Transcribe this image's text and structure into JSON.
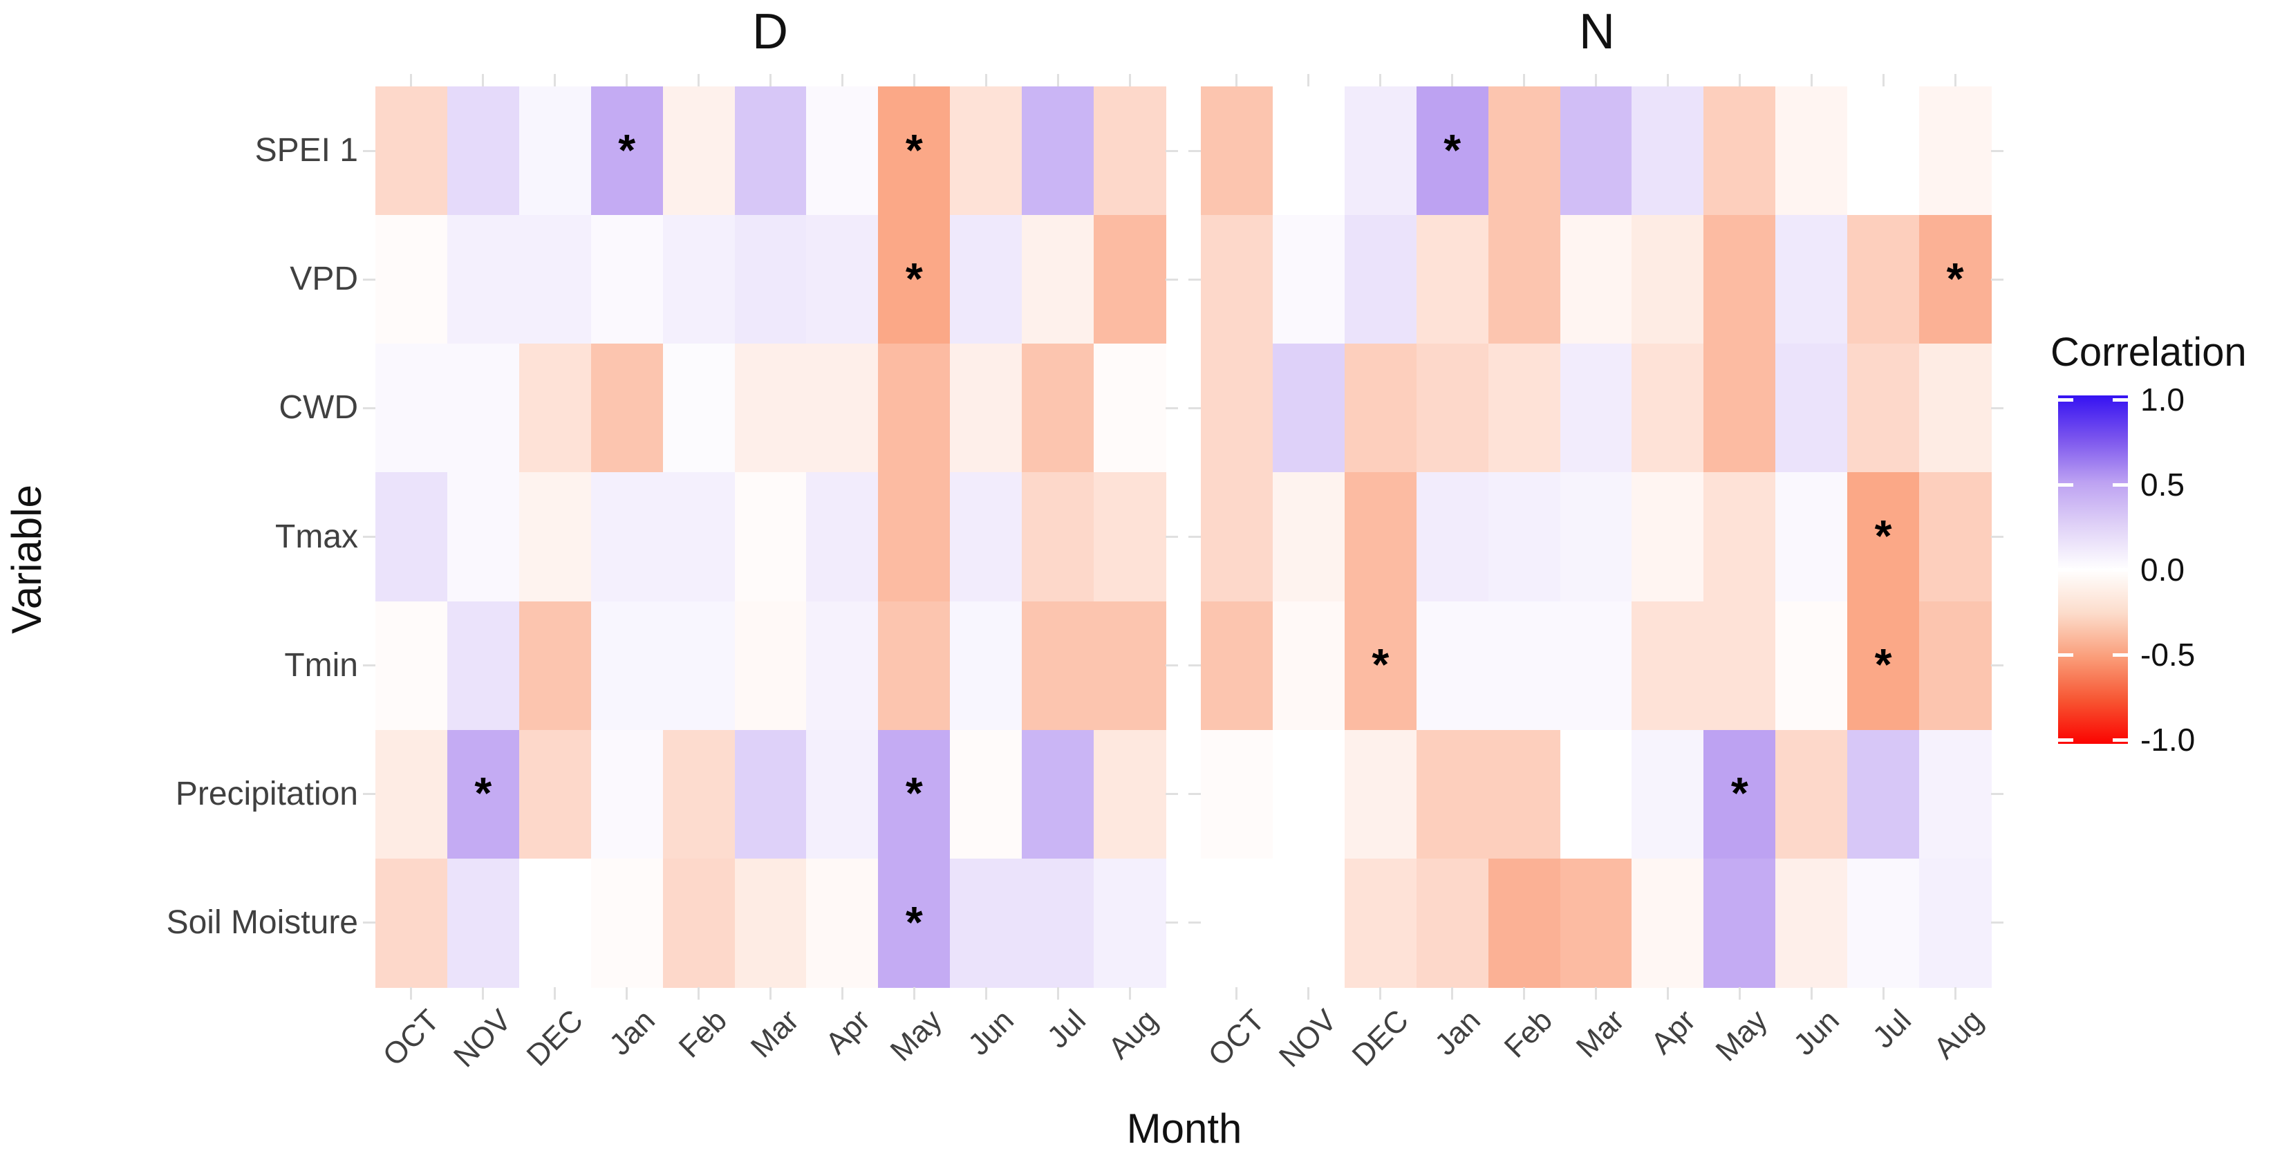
{
  "chart_data": {
    "type": "heatmap",
    "xlabel": "Month",
    "ylabel": "Variable",
    "categories": [
      "OCT",
      "NOV",
      "DEC",
      "Jan",
      "Feb",
      "Mar",
      "Apr",
      "May",
      "Jun",
      "Jul",
      "Aug"
    ],
    "variables": [
      "SPEI 1",
      "VPD",
      "CWD",
      "Tmax",
      "Tmin",
      "Precipitation",
      "Soil Moisture"
    ],
    "value_range": [
      -1,
      1
    ],
    "significance_marker": "*",
    "facets": [
      {
        "label": "D",
        "series": [
          {
            "name": "SPEI 1",
            "values": [
              -0.2,
              0.2,
              0.05,
              0.45,
              -0.07,
              0.3,
              0.03,
              -0.45,
              -0.15,
              0.4,
              -0.2
            ],
            "significant_months": [
              "Jan",
              "May"
            ]
          },
          {
            "name": "VPD",
            "values": [
              -0.02,
              0.08,
              0.08,
              0.03,
              0.08,
              0.12,
              0.1,
              -0.45,
              0.12,
              -0.07,
              -0.35
            ],
            "significant_months": [
              "May"
            ]
          },
          {
            "name": "CWD",
            "values": [
              0.04,
              0.04,
              -0.15,
              -0.3,
              0.02,
              -0.08,
              -0.08,
              -0.35,
              -0.08,
              -0.3,
              -0.02
            ],
            "significant_months": []
          },
          {
            "name": "Tmax",
            "values": [
              0.15,
              0.04,
              -0.06,
              0.08,
              0.08,
              -0.02,
              0.1,
              -0.35,
              0.1,
              -0.2,
              -0.15
            ],
            "significant_months": []
          },
          {
            "name": "Tmin",
            "values": [
              -0.02,
              0.15,
              -0.3,
              0.05,
              0.05,
              -0.03,
              0.07,
              -0.3,
              0.05,
              -0.3,
              -0.3
            ],
            "significant_months": []
          },
          {
            "name": "Precipitation",
            "values": [
              -0.1,
              0.45,
              -0.2,
              0.03,
              -0.18,
              0.25,
              0.08,
              0.45,
              -0.02,
              0.4,
              -0.12
            ],
            "significant_months": [
              "NOV",
              "May"
            ]
          },
          {
            "name": "Soil Moisture",
            "values": [
              -0.2,
              0.15,
              0.0,
              -0.02,
              -0.2,
              -0.1,
              -0.03,
              0.45,
              0.15,
              0.15,
              0.08
            ],
            "significant_months": [
              "May"
            ]
          }
        ]
      },
      {
        "label": "N",
        "series": [
          {
            "name": "SPEI 1",
            "values": [
              -0.3,
              0.0,
              0.1,
              0.5,
              -0.3,
              0.35,
              0.15,
              -0.25,
              -0.05,
              0.0,
              -0.05
            ],
            "significant_months": [
              "Jan"
            ]
          },
          {
            "name": "VPD",
            "values": [
              -0.2,
              0.03,
              0.15,
              -0.15,
              -0.3,
              -0.05,
              -0.1,
              -0.35,
              0.12,
              -0.25,
              -0.4
            ],
            "significant_months": [
              "Aug"
            ]
          },
          {
            "name": "CWD",
            "values": [
              -0.2,
              0.25,
              -0.25,
              -0.2,
              -0.15,
              0.1,
              -0.15,
              -0.35,
              0.15,
              -0.2,
              -0.1
            ],
            "significant_months": []
          },
          {
            "name": "Tmax",
            "values": [
              -0.2,
              -0.06,
              -0.35,
              0.1,
              0.08,
              0.06,
              -0.05,
              -0.15,
              0.04,
              -0.45,
              -0.25
            ],
            "significant_months": [
              "Jul"
            ]
          },
          {
            "name": "Tmin",
            "values": [
              -0.3,
              -0.03,
              -0.35,
              0.04,
              0.04,
              0.04,
              -0.15,
              -0.15,
              -0.02,
              -0.45,
              -0.3
            ],
            "significant_months": [
              "DEC",
              "Jul"
            ]
          },
          {
            "name": "Precipitation",
            "values": [
              -0.02,
              0.0,
              -0.07,
              -0.25,
              -0.25,
              0.0,
              0.06,
              0.5,
              -0.2,
              0.3,
              0.07
            ],
            "significant_months": [
              "May"
            ]
          },
          {
            "name": "Soil Moisture",
            "values": [
              0.0,
              0.0,
              -0.15,
              -0.2,
              -0.4,
              -0.35,
              -0.04,
              0.45,
              -0.08,
              0.04,
              0.08
            ],
            "significant_months": []
          }
        ]
      }
    ],
    "legend": {
      "title": "Correlation",
      "tick_labels": [
        "1.0",
        "0.5",
        "0.0",
        "-0.5",
        "-1.0"
      ],
      "position": "right"
    },
    "colors": {
      "scale_anchor_pos1": "#3512f2",
      "scale_anchor_pos05": "#bda2f2",
      "scale_anchor_zero": "#ffffff",
      "scale_anchor_neg05": "#fa9e7a",
      "scale_anchor_neg1": "#fb0300"
    }
  }
}
